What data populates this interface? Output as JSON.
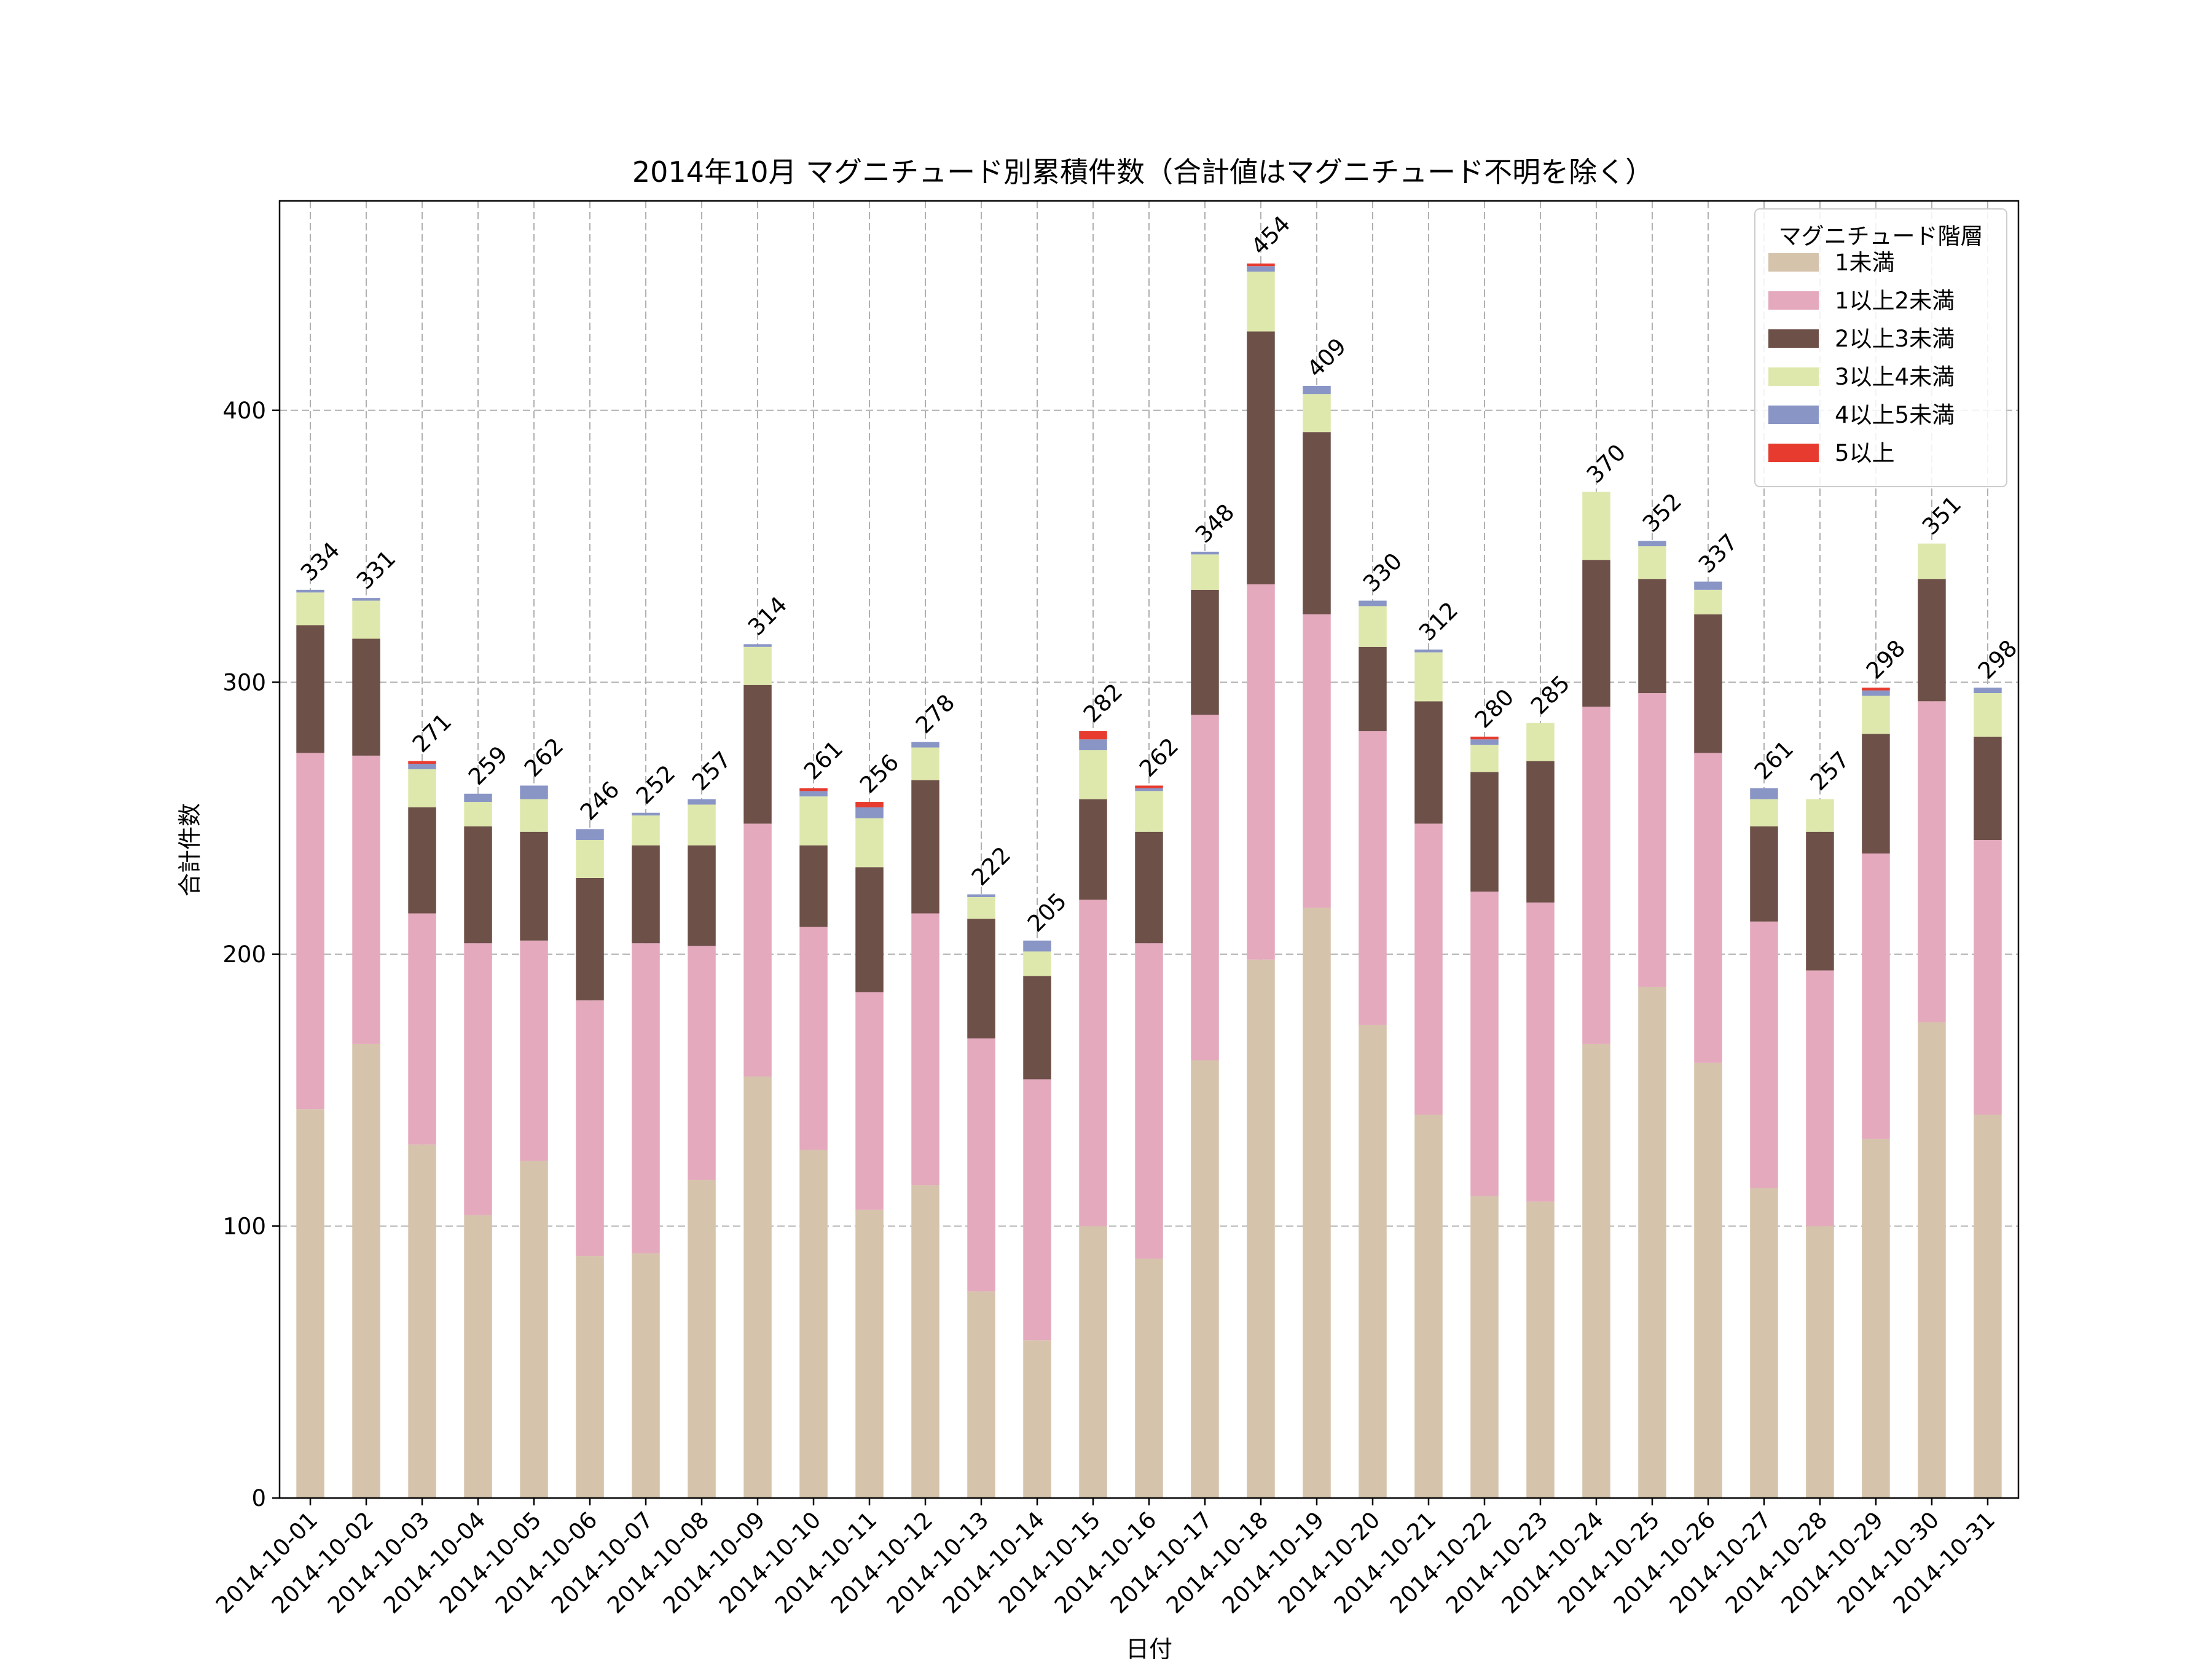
{
  "chart_data": {
    "type": "bar",
    "stacked": true,
    "title": "2014年10月 マグニチュード別累積件数（合計値はマグニチュード不明を除く）",
    "xlabel": "日付",
    "ylabel": "合計件数",
    "ylim": [
      0,
      477
    ],
    "yticks": [
      0,
      100,
      200,
      300,
      400
    ],
    "grid": true,
    "legend_title": "マグニチュード階層",
    "legend_position": "top-right",
    "categories": [
      "2014-10-01",
      "2014-10-02",
      "2014-10-03",
      "2014-10-04",
      "2014-10-05",
      "2014-10-06",
      "2014-10-07",
      "2014-10-08",
      "2014-10-09",
      "2014-10-10",
      "2014-10-11",
      "2014-10-12",
      "2014-10-13",
      "2014-10-14",
      "2014-10-15",
      "2014-10-16",
      "2014-10-17",
      "2014-10-18",
      "2014-10-19",
      "2014-10-20",
      "2014-10-21",
      "2014-10-22",
      "2014-10-23",
      "2014-10-24",
      "2014-10-25",
      "2014-10-26",
      "2014-10-27",
      "2014-10-28",
      "2014-10-29",
      "2014-10-30",
      "2014-10-31"
    ],
    "series": [
      {
        "name": "1未満",
        "color": "#d5c3ab",
        "values": [
          143,
          167,
          130,
          104,
          124,
          89,
          90,
          117,
          155,
          128,
          106,
          115,
          76,
          58,
          100,
          88,
          161,
          198,
          217,
          174,
          141,
          111,
          109,
          167,
          188,
          160,
          114,
          100,
          132,
          175,
          141
        ]
      },
      {
        "name": "1以上2未満",
        "color": "#e4a9bd",
        "values": [
          131,
          106,
          85,
          100,
          81,
          94,
          114,
          86,
          93,
          82,
          80,
          100,
          93,
          96,
          120,
          116,
          127,
          138,
          108,
          108,
          107,
          112,
          110,
          124,
          108,
          114,
          98,
          94,
          105,
          118,
          101
        ]
      },
      {
        "name": "2以上3未満",
        "color": "#6d5048",
        "values": [
          47,
          43,
          39,
          43,
          40,
          45,
          36,
          37,
          51,
          30,
          46,
          49,
          44,
          38,
          37,
          41,
          46,
          93,
          67,
          31,
          45,
          44,
          52,
          54,
          42,
          51,
          35,
          51,
          44,
          45,
          38
        ]
      },
      {
        "name": "3以上4未満",
        "color": "#dfe8ac",
        "values": [
          12,
          14,
          14,
          9,
          12,
          14,
          11,
          15,
          14,
          18,
          18,
          12,
          8,
          9,
          18,
          15,
          13,
          22,
          14,
          15,
          18,
          10,
          14,
          25,
          12,
          9,
          10,
          12,
          14,
          13,
          16
        ]
      },
      {
        "name": "4以上5未満",
        "color": "#8995c5",
        "values": [
          1,
          1,
          2,
          3,
          5,
          4,
          1,
          2,
          1,
          2,
          4,
          2,
          1,
          4,
          4,
          1,
          1,
          2,
          3,
          2,
          1,
          2,
          0,
          0,
          2,
          3,
          4,
          0,
          2,
          0,
          2
        ]
      },
      {
        "name": "5以上",
        "color": "#e63b2e",
        "values": [
          0,
          0,
          1,
          0,
          0,
          0,
          0,
          0,
          0,
          1,
          2,
          0,
          0,
          0,
          3,
          1,
          0,
          1,
          0,
          0,
          0,
          1,
          0,
          0,
          0,
          0,
          0,
          0,
          1,
          0,
          0
        ]
      }
    ],
    "totals": [
      334,
      331,
      271,
      259,
      262,
      246,
      252,
      257,
      314,
      261,
      256,
      278,
      222,
      205,
      282,
      262,
      348,
      454,
      409,
      330,
      312,
      280,
      285,
      370,
      352,
      337,
      261,
      257,
      298,
      351,
      298
    ]
  }
}
